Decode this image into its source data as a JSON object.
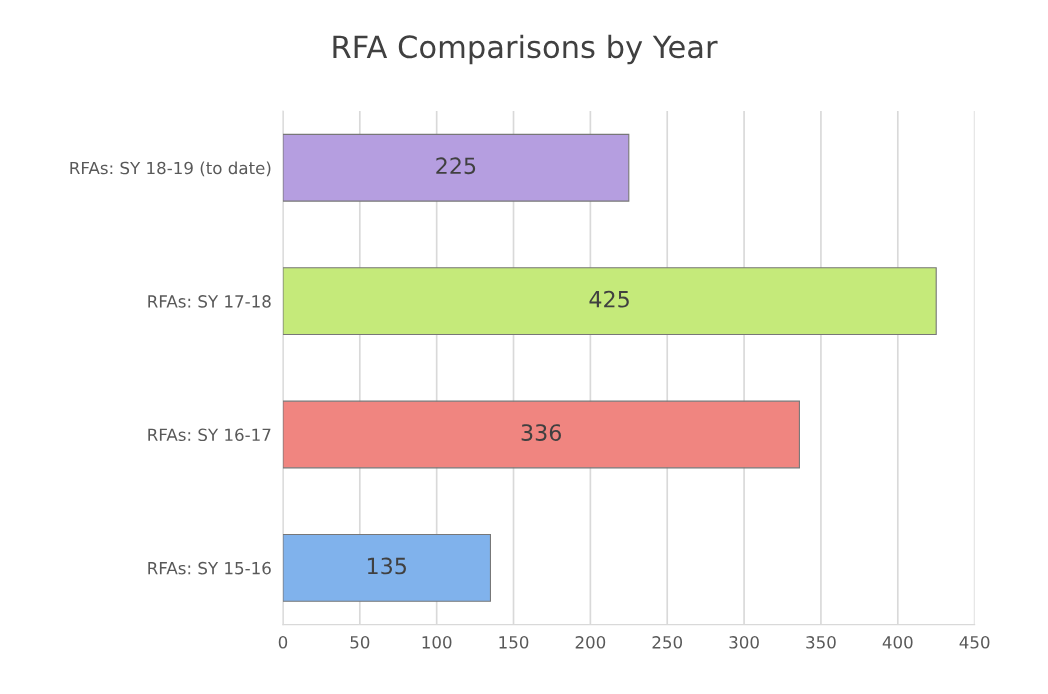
{
  "chart_data": {
    "type": "bar",
    "orientation": "horizontal",
    "title": "RFA Comparisons by Year",
    "categories": [
      "RFAs: SY 18-19 (to date)",
      "RFAs: SY 17-18",
      "RFAs: SY 16-17",
      "RFAs: SY 15-16"
    ],
    "values": [
      225,
      425,
      336,
      135
    ],
    "colors": [
      "#b59ee0",
      "#c5ea7a",
      "#f08580",
      "#80b2ec"
    ],
    "xlim": [
      0,
      450
    ],
    "xticks": [
      0,
      50,
      100,
      150,
      200,
      250,
      300,
      350,
      400,
      450
    ],
    "grid": "x",
    "data_labels": true
  }
}
